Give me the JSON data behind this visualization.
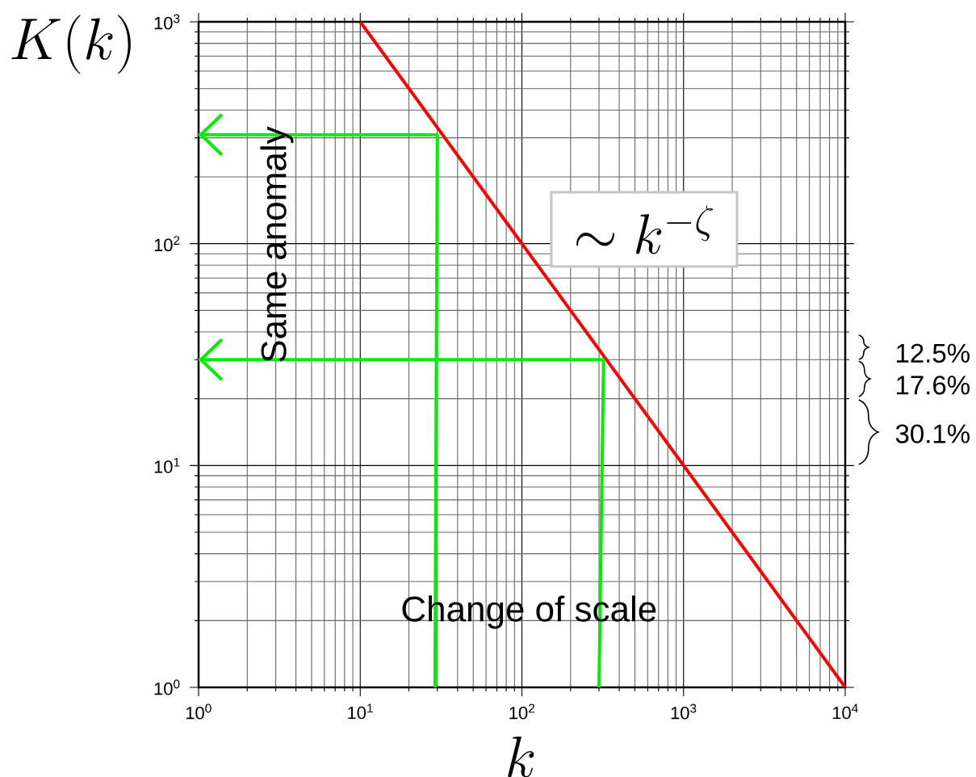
{
  "chart_data": {
    "type": "line",
    "xlabel": "k",
    "ylabel": "K(k)",
    "log": "xy",
    "xlim": [
      1,
      10000
    ],
    "ylim": [
      1,
      1000
    ],
    "xticks": [
      {
        "value": 1,
        "label": "10$^{0}$"
      },
      {
        "value": 10,
        "label": "10$^{1}$"
      },
      {
        "value": 100,
        "label": "10$^{2}$"
      },
      {
        "value": 1000,
        "label": "10$^{3}$"
      },
      {
        "value": 10000,
        "label": "10$^{4}$"
      }
    ],
    "yticks": [
      {
        "value": 1,
        "label": "10$^{0}$"
      },
      {
        "value": 10,
        "label": "10$^{1}$"
      },
      {
        "value": 100,
        "label": "10$^{2}$"
      },
      {
        "value": 1000,
        "label": "10$^{3}$"
      }
    ],
    "grid": true,
    "series": [
      {
        "color": "#ff0000",
        "x": [
          10,
          10000
        ],
        "values": [
          1000,
          1
        ]
      },
      {
        "color": "#00ee00",
        "x": [
          29,
          30,
          1
        ],
        "values": [
          1,
          310,
          310
        ]
      },
      {
        "color": "#00ee00",
        "x": [
          300,
          320,
          1
        ],
        "values": [
          1,
          30,
          30
        ]
      }
    ],
    "annotations": [
      "\\sim k^{-\\zeta}",
      "Same anomaly",
      "Change of scale",
      "12.5%",
      "17.6%",
      "30.1%"
    ]
  }
}
